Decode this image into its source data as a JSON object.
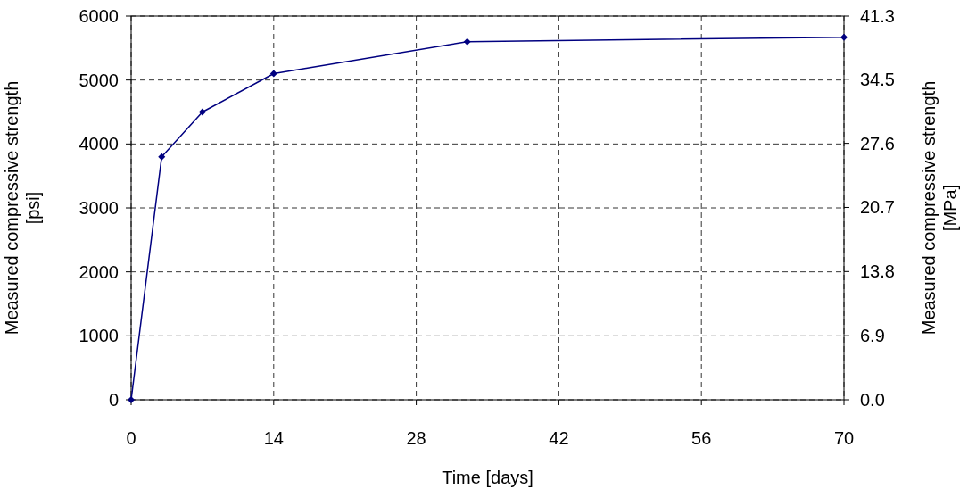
{
  "chart_data": {
    "type": "line",
    "xlabel": "Time [days]",
    "ylabel": "Measured compressive strength\n[psi]",
    "y2label": "Measured compressive strength\n[MPa]",
    "x": [
      0,
      3,
      7,
      14,
      33,
      70
    ],
    "series": [
      {
        "color": "#000080",
        "values": [
          0,
          3800,
          4500,
          5100,
          5600,
          5670
        ]
      }
    ],
    "xlim": [
      0,
      70
    ],
    "xticks": [
      0,
      14,
      28,
      42,
      56,
      70
    ],
    "ylim": [
      0,
      6000
    ],
    "yticks": [
      0,
      1000,
      2000,
      3000,
      4000,
      5000,
      6000
    ],
    "y2lim": [
      0,
      41.3
    ],
    "y2ticks": [
      {
        "value": 0,
        "label": "0.0"
      },
      6.9,
      13.8,
      20.7,
      27.6,
      34.5,
      41.3
    ],
    "grid": true,
    "marker": "diamond",
    "line_style": "solid"
  }
}
